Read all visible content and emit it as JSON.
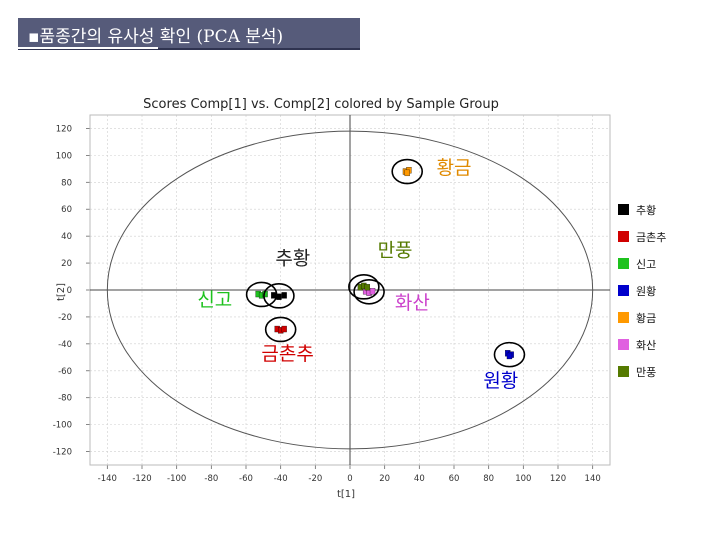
{
  "header": {
    "title": "▪품종간의 유사성 확인 (PCA 분석)"
  },
  "chart_data": {
    "type": "scatter",
    "title": "Scores Comp[1] vs. Comp[2] colored by Sample Group",
    "xlabel": "t[1]",
    "ylabel": "t[2]",
    "xlim": [
      -150,
      150
    ],
    "ylim": [
      -130,
      130
    ],
    "xticks": [
      -140,
      -120,
      -100,
      -80,
      -60,
      -40,
      -20,
      0,
      20,
      40,
      60,
      80,
      100,
      120,
      140
    ],
    "yticks": [
      120,
      100,
      80,
      60,
      40,
      20,
      0,
      -20,
      -40,
      -60,
      -80,
      -100,
      -120
    ],
    "grid": true,
    "legend_position": "right",
    "ellipse": {
      "cx": 0,
      "cy": 0,
      "rx": 140,
      "ry": 118
    },
    "series": [
      {
        "name": "추황",
        "color": "#000000",
        "points": [
          [
            -44,
            -4
          ],
          [
            -41,
            -5
          ],
          [
            -38,
            -4
          ]
        ]
      },
      {
        "name": "금촌추",
        "color": "#d00000",
        "points": [
          [
            -42,
            -29
          ],
          [
            -40,
            -30
          ],
          [
            -38,
            -29
          ]
        ]
      },
      {
        "name": "신고",
        "color": "#1ec21e",
        "points": [
          [
            -53,
            -3
          ],
          [
            -51,
            -4
          ],
          [
            -49,
            -3
          ]
        ]
      },
      {
        "name": "원황",
        "color": "#0000cc",
        "points": [
          [
            91,
            -47
          ],
          [
            93,
            -48
          ],
          [
            92,
            -49
          ]
        ]
      },
      {
        "name": "황금",
        "color": "#ff9900",
        "points": [
          [
            32,
            88
          ],
          [
            34,
            89
          ],
          [
            33,
            87
          ]
        ]
      },
      {
        "name": "화산",
        "color": "#e060e0",
        "points": [
          [
            9,
            -1
          ],
          [
            11,
            -2
          ],
          [
            13,
            -1
          ]
        ]
      },
      {
        "name": "만풍",
        "color": "#557a00",
        "points": [
          [
            6,
            2
          ],
          [
            8,
            3
          ],
          [
            10,
            2
          ]
        ]
      }
    ],
    "annotations": [
      {
        "text": "황금",
        "color": "#e08a00",
        "x": 60,
        "y": 86
      },
      {
        "text": "추황",
        "color": "#222222",
        "x": -33,
        "y": 19
      },
      {
        "text": "만풍",
        "color": "#557a00",
        "x": 26,
        "y": 25
      },
      {
        "text": "신고",
        "color": "#1ec21e",
        "x": -78,
        "y": -12
      },
      {
        "text": "화산",
        "color": "#cc44cc",
        "x": 36,
        "y": -14
      },
      {
        "text": "금촌추",
        "color": "#d00000",
        "x": -36,
        "y": -52
      },
      {
        "text": "원황",
        "color": "#0000cc",
        "x": 87,
        "y": -72
      }
    ]
  }
}
